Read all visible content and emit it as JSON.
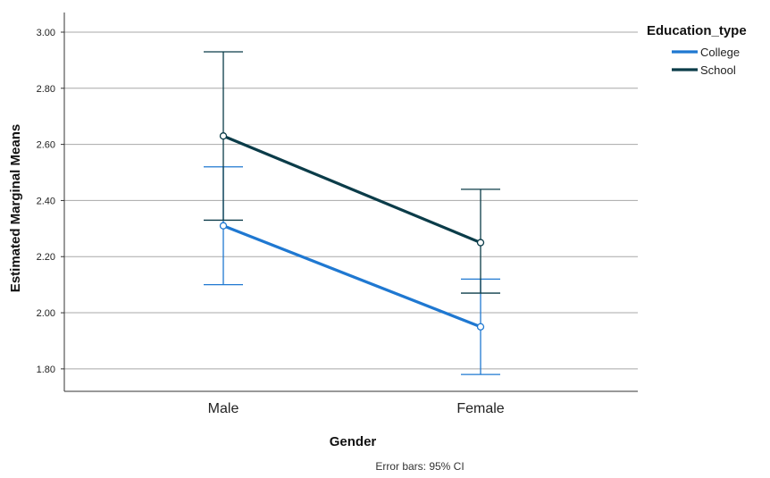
{
  "chart_data": {
    "type": "line",
    "xlabel": "Gender",
    "ylabel": "Estimated Marginal Means",
    "categories": [
      "Male",
      "Female"
    ],
    "ylim": [
      1.72,
      3.07
    ],
    "yticks": [
      1.8,
      2.0,
      2.2,
      2.4,
      2.6,
      2.8,
      3.0
    ],
    "ytick_labels": [
      "1.80",
      "2.00",
      "2.20",
      "2.40",
      "2.60",
      "2.80",
      "3.00"
    ],
    "grid": true,
    "legend": {
      "title": "Education_type",
      "position": "top-right"
    },
    "series": [
      {
        "name": "College",
        "color": "#1f78d1",
        "values": [
          2.31,
          1.95
        ],
        "ci_lower": [
          2.1,
          1.78
        ],
        "ci_upper": [
          2.52,
          2.12
        ]
      },
      {
        "name": "School",
        "color": "#0b3c49",
        "values": [
          2.63,
          2.25
        ],
        "ci_lower": [
          2.33,
          2.07
        ],
        "ci_upper": [
          2.93,
          2.44
        ]
      }
    ],
    "footnote": "Error bars: 95% CI"
  }
}
